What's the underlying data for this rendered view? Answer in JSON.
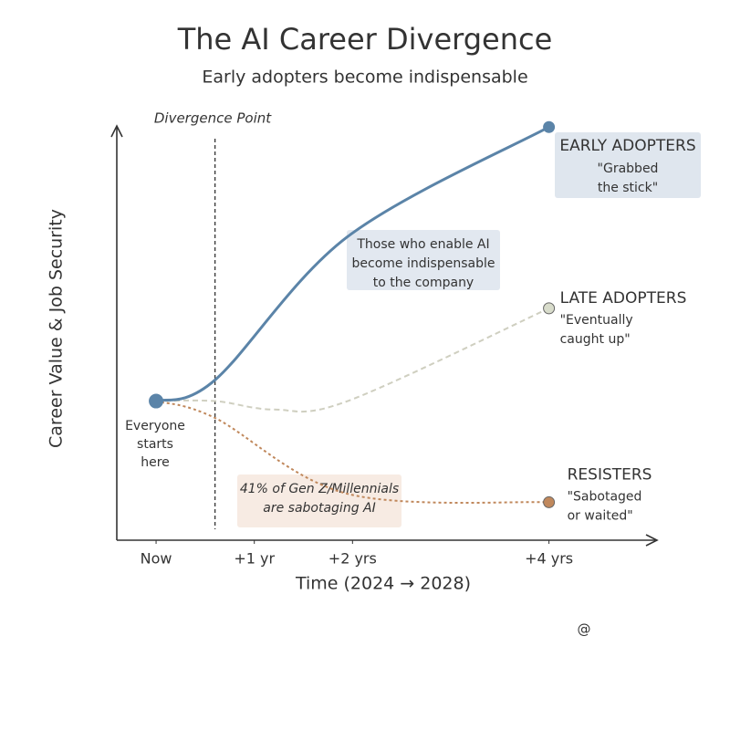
{
  "chart_data": {
    "type": "line",
    "title": "The AI Career Divergence",
    "subtitle": "Early adopters become indispensable",
    "xlabel": "Time (2024 → 2028)",
    "ylabel": "Career Value & Job Security",
    "xlim": [
      -0.4,
      5.1
    ],
    "ylim": [
      0,
      100
    ],
    "xticks": [
      {
        "value": 0,
        "label": "Now"
      },
      {
        "value": 1,
        "label": "+1 yr"
      },
      {
        "value": 2,
        "label": "+2 yrs"
      },
      {
        "value": 4,
        "label": "+4 yrs"
      }
    ],
    "divergence": {
      "x": 0.6,
      "label": "Divergence Point"
    },
    "start_label": [
      "Everyone",
      "starts",
      "here"
    ],
    "series": [
      {
        "name": "EARLY ADOPTERS",
        "color": "#5b84a8",
        "style": "solid",
        "x": [
          0,
          0.6,
          1.95,
          4
        ],
        "values": [
          33,
          38,
          72,
          98
        ],
        "note": [
          "\"Grabbed",
          "the stick\""
        ]
      },
      {
        "name": "LATE ADOPTERS",
        "color": "#cfcfc0",
        "style": "dashed",
        "x": [
          0,
          0.6,
          1.2,
          1.95,
          4
        ],
        "values": [
          33,
          33,
          31,
          33,
          55
        ],
        "note": [
          "\"Eventually",
          "caught up\""
        ]
      },
      {
        "name": "RESISTERS",
        "color": "#c0885c",
        "style": "dotted",
        "x": [
          0,
          0.6,
          1.95,
          4
        ],
        "values": [
          33,
          29,
          11,
          9
        ],
        "note": [
          "\"Sabotaged",
          "or waited\""
        ]
      }
    ],
    "callouts": [
      {
        "lines": [
          "Those who enable AI",
          "become indispensable",
          "to the company"
        ]
      },
      {
        "lines": [
          "41% of Gen Z/Millennials",
          "are sabotaging AI"
        ]
      }
    ],
    "watermark": "@"
  }
}
